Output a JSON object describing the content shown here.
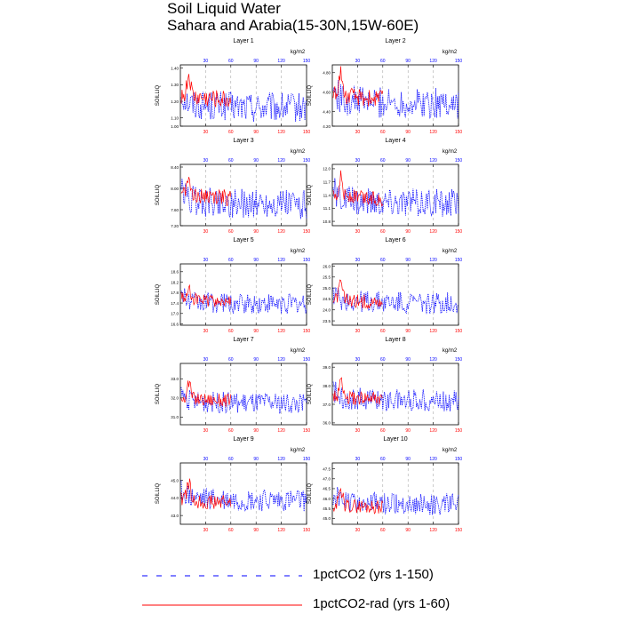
{
  "figure": {
    "title_line1": "Soil Liquid Water",
    "title_line2": "Sahara and Arabia(15-30N,15W-60E)"
  },
  "legend": {
    "items": [
      {
        "label": "1pctCO2 (yrs 1-150)",
        "color": "#0000ff",
        "dash": true
      },
      {
        "label": "1pctCO2-rad (yrs 1-60)",
        "color": "#ff0000",
        "dash": false
      }
    ]
  },
  "chart_data": [
    {
      "type": "line",
      "title": "Layer 1",
      "ylabel": "SOILLIQ",
      "unit": "kg/m2",
      "ylim": [
        1.05,
        1.42
      ],
      "yticks": [
        1.0,
        1.1,
        1.2,
        1.3,
        1.4
      ],
      "ytick_labels": [
        "1.00",
        "1.10",
        "1.20",
        "1.30",
        "1.40"
      ],
      "xlim": [
        0,
        150
      ],
      "xticks": [
        30,
        60,
        90,
        120,
        150
      ],
      "series_blue_base": 1.16,
      "series_blue_amp": 0.09,
      "series_red_base": 1.22,
      "series_red_amp": 0.08
    },
    {
      "type": "line",
      "title": "Layer 2",
      "ylabel": "SOILLIQ",
      "unit": "kg/m2",
      "ylim": [
        4.25,
        4.88
      ],
      "yticks": [
        4.2,
        4.4,
        4.6,
        4.8
      ],
      "ytick_labels": [
        "4.20",
        "4.40",
        "4.60",
        "4.80"
      ],
      "xlim": [
        0,
        150
      ],
      "xticks": [
        30,
        60,
        90,
        120,
        150
      ],
      "series_blue_base": 4.48,
      "series_blue_amp": 0.16,
      "series_red_base": 4.55,
      "series_red_amp": 0.13
    },
    {
      "type": "line",
      "title": "Layer 3",
      "ylabel": "SOILLIQ",
      "unit": "kg/m2",
      "ylim": [
        7.3,
        8.45
      ],
      "yticks": [
        7.2,
        7.6,
        8.0,
        8.4
      ],
      "ytick_labels": [
        "7.20",
        "7.60",
        "8.00",
        "8.40"
      ],
      "xlim": [
        0,
        150
      ],
      "xticks": [
        30,
        60,
        90,
        120,
        150
      ],
      "series_blue_base": 7.7,
      "series_blue_amp": 0.28,
      "series_red_base": 7.85,
      "series_red_amp": 0.22
    },
    {
      "type": "line",
      "title": "Layer 4",
      "ylabel": "SOILLIQ",
      "unit": "kg/m2",
      "ylim": [
        10.7,
        12.1
      ],
      "yticks": [
        10.8,
        11.1,
        11.4,
        11.7,
        12.0
      ],
      "ytick_labels": [
        "10.8",
        "11.1",
        "11.4",
        "11.7",
        "12.0"
      ],
      "xlim": [
        0,
        150
      ],
      "xticks": [
        30,
        60,
        90,
        120,
        150
      ],
      "series_blue_base": 11.2,
      "series_blue_amp": 0.33,
      "series_red_base": 11.35,
      "series_red_amp": 0.27
    },
    {
      "type": "line",
      "title": "Layer 5",
      "ylabel": "SOILLIQ",
      "unit": "kg/m2",
      "ylim": [
        16.55,
        18.9
      ],
      "yticks": [
        16.6,
        17.0,
        17.4,
        17.8,
        18.2,
        18.6
      ],
      "ytick_labels": [
        "16.6",
        "17.0",
        "17.4",
        "17.8",
        "18.2",
        "18.6"
      ],
      "xlim": [
        0,
        150
      ],
      "xticks": [
        30,
        60,
        90,
        120,
        150
      ],
      "series_blue_base": 17.35,
      "series_blue_amp": 0.4,
      "series_red_base": 17.5,
      "series_red_amp": 0.35
    },
    {
      "type": "line",
      "title": "Layer 6",
      "ylabel": "SOILLIQ",
      "unit": "kg/m2",
      "ylim": [
        23.3,
        26.1
      ],
      "yticks": [
        23.5,
        24.0,
        24.5,
        25.0,
        25.5,
        26.0
      ],
      "ytick_labels": [
        "23.5",
        "24.0",
        "24.5",
        "25.0",
        "25.5",
        "26.0"
      ],
      "xlim": [
        0,
        150
      ],
      "xticks": [
        30,
        60,
        90,
        120,
        150
      ],
      "series_blue_base": 24.3,
      "series_blue_amp": 0.5,
      "series_red_base": 24.4,
      "series_red_amp": 0.45
    },
    {
      "type": "line",
      "title": "Layer 7",
      "ylabel": "SOILLIQ",
      "unit": "kg/m2",
      "ylim": [
        30.6,
        33.8
      ],
      "yticks": [
        31.0,
        32.0,
        33.0
      ],
      "ytick_labels": [
        "31.0",
        "32.0",
        "33.0"
      ],
      "xlim": [
        0,
        150
      ],
      "xticks": [
        30,
        60,
        90,
        120,
        150
      ],
      "series_blue_base": 31.7,
      "series_blue_amp": 0.55,
      "series_red_base": 31.9,
      "series_red_amp": 0.5
    },
    {
      "type": "line",
      "title": "Layer 8",
      "ylabel": "SOILLIQ",
      "unit": "kg/m2",
      "ylim": [
        35.9,
        39.2
      ],
      "yticks": [
        36.0,
        37.0,
        38.0,
        39.0
      ],
      "ytick_labels": [
        "36.0",
        "37.0",
        "38.0",
        "39.0"
      ],
      "xlim": [
        0,
        150
      ],
      "xticks": [
        30,
        60,
        90,
        120,
        150
      ],
      "series_blue_base": 37.2,
      "series_blue_amp": 0.6,
      "series_red_base": 37.3,
      "series_red_amp": 0.55
    },
    {
      "type": "line",
      "title": "Layer 9",
      "ylabel": "SOILLIQ",
      "unit": "kg/m2",
      "ylim": [
        42.5,
        46.0
      ],
      "yticks": [
        43.0,
        44.0,
        45.0
      ],
      "ytick_labels": [
        "43.0",
        "44.0",
        "45.0"
      ],
      "xlim": [
        0,
        150
      ],
      "xticks": [
        30,
        60,
        90,
        120,
        150
      ],
      "series_blue_base": 43.8,
      "series_blue_amp": 0.65,
      "series_red_base": 43.8,
      "series_red_amp": 0.6
    },
    {
      "type": "line",
      "title": "Layer 10",
      "ylabel": "SOILLIQ",
      "unit": "kg/m2",
      "ylim": [
        44.7,
        47.8
      ],
      "yticks": [
        45.0,
        45.5,
        46.0,
        46.5,
        47.0,
        47.5
      ],
      "ytick_labels": [
        "45.0",
        "45.5",
        "46.0",
        "46.5",
        "47.0",
        "47.5"
      ],
      "xlim": [
        0,
        150
      ],
      "xticks": [
        30,
        60,
        90,
        120,
        150
      ],
      "series_blue_base": 45.7,
      "series_blue_amp": 0.55,
      "series_red_base": 45.6,
      "series_red_amp": 0.5
    }
  ]
}
